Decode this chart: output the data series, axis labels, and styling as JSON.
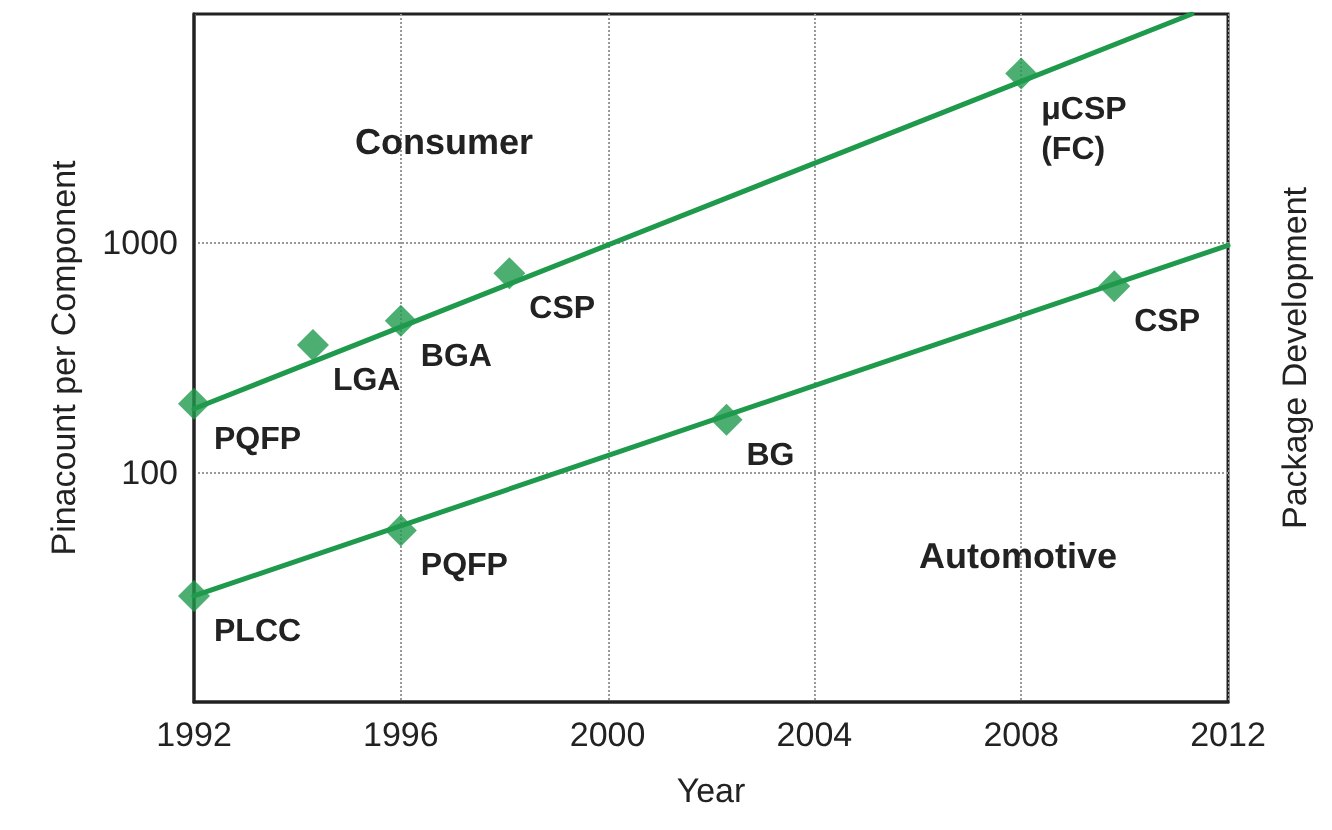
{
  "chart_data": {
    "type": "scatter",
    "xlabel": "Year",
    "ylabel": "Pinacount per Component",
    "y2label": "Package Development",
    "xlim": [
      1992,
      2012
    ],
    "xticks": [
      1992,
      1996,
      2000,
      2004,
      2008,
      2012
    ],
    "ylim": [
      10,
      10000
    ],
    "yticks": [
      100,
      1000
    ],
    "log": true,
    "grid": true,
    "marker": "diamond",
    "series": [
      {
        "color": "#1f9a4c",
        "x": [
          1992,
          1994.3,
          1996,
          1998.1,
          2008
        ],
        "values": [
          200,
          360,
          460,
          740,
          5500
        ]
      },
      {
        "type": "line",
        "color": "#1f9a4c",
        "marker": "none",
        "line_style": "solid",
        "x": [
          1992,
          2011.3
        ],
        "values": [
          190,
          10000
        ]
      },
      {
        "color": "#1f9a4c",
        "x": [
          1992,
          1996,
          2002.3,
          2009.8
        ],
        "values": [
          29,
          56,
          170,
          650
        ]
      },
      {
        "type": "line",
        "color": "#1f9a4c",
        "marker": "none",
        "line_style": "solid",
        "x": [
          1992,
          2012
        ],
        "values": [
          29,
          980
        ]
      }
    ],
    "annotations": [
      "Consumer",
      "Automotive",
      {
        "text": "PQFP",
        "x": 1992,
        "y": 200
      },
      {
        "text": "LGA",
        "x": 1994.3,
        "y": 360
      },
      {
        "text": "BGA",
        "x": 1996,
        "y": 460
      },
      {
        "text": "CSP",
        "x": 1998.1,
        "y": 740
      },
      {
        "text": "μCSP\n(FC)",
        "x": 2008,
        "y": 5500
      },
      {
        "text": "PLCC",
        "x": 1992,
        "y": 29
      },
      {
        "text": "PQFP",
        "x": 1996,
        "y": 56
      },
      {
        "text": "BG",
        "x": 2002.3,
        "y": 170
      },
      {
        "text": "CSP",
        "x": 2009.8,
        "y": 650
      }
    ]
  }
}
